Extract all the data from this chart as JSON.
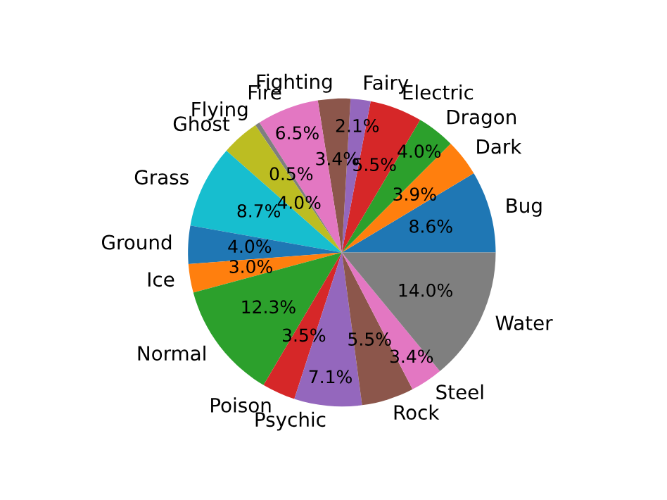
{
  "chart_data": {
    "type": "pie",
    "categories": [
      "Bug",
      "Dark",
      "Dragon",
      "Electric",
      "Fairy",
      "Fighting",
      "Fire",
      "Flying",
      "Ghost",
      "Grass",
      "Ground",
      "Ice",
      "Normal",
      "Poison",
      "Psychic",
      "Rock",
      "Steel",
      "Water"
    ],
    "values": [
      8.6,
      3.9,
      4.0,
      5.5,
      2.1,
      3.4,
      6.5,
      0.5,
      4.0,
      8.7,
      4.0,
      3.0,
      12.3,
      3.5,
      7.1,
      5.5,
      3.4,
      14.0
    ],
    "value_labels": [
      "8.6%",
      "3.9%",
      "4.0%",
      "5.5%",
      "2.1%",
      "3.4%",
      "6.5%",
      "0.5%",
      "4.0%",
      "8.7%",
      "4.0%",
      "3.0%",
      "12.3%",
      "3.5%",
      "7.1%",
      "5.5%",
      "3.4%",
      "14.0%"
    ],
    "colors": [
      "#1f77b4",
      "#ff7f0e",
      "#2ca02c",
      "#d62728",
      "#9467bd",
      "#8c564b",
      "#e377c2",
      "#7f7f7f",
      "#bcbd22",
      "#17becf",
      "#1f77b4",
      "#ff7f0e",
      "#2ca02c",
      "#d62728",
      "#9467bd",
      "#8c564b",
      "#e377c2",
      "#7f7f7f"
    ]
  }
}
